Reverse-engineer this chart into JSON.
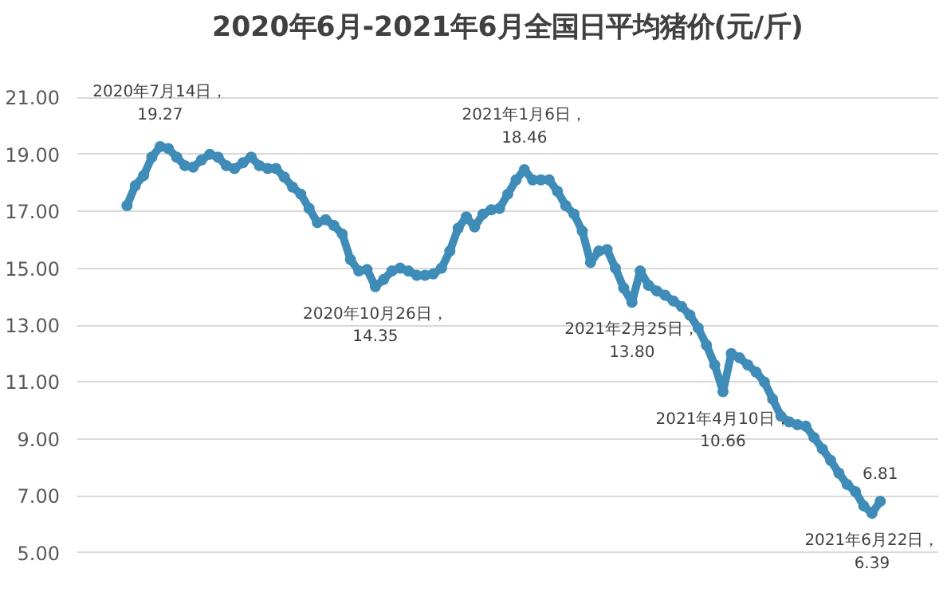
{
  "chart_data": {
    "type": "line",
    "title": "2020年6月-2021年6月全国日平均猪价(元/斤)",
    "categories": [
      null,
      null,
      null,
      null,
      null,
      null,
      null,
      null,
      null,
      null,
      null,
      null,
      null,
      null,
      null,
      null,
      null,
      null,
      null,
      null,
      null,
      null,
      null,
      null,
      null,
      null,
      null,
      null,
      null,
      null,
      null,
      null,
      null,
      null,
      null,
      null,
      null,
      null,
      null,
      null,
      null,
      null,
      null,
      null,
      null,
      null,
      null,
      null,
      null,
      null,
      null,
      null,
      null,
      null,
      null,
      null,
      null,
      null,
      null,
      null,
      null,
      null,
      null,
      null,
      null,
      null,
      null,
      null,
      null,
      null,
      null,
      null,
      null,
      null,
      null,
      null,
      null,
      null,
      null,
      null,
      null,
      null,
      null,
      null,
      null,
      null,
      null,
      null,
      null,
      null,
      null,
      null
    ],
    "series": [
      {
        "color": "#3f8cb8",
        "values": [
          17.2,
          17.9,
          18.25,
          18.9,
          19.27,
          19.2,
          18.9,
          18.6,
          18.55,
          18.8,
          19.0,
          18.9,
          18.6,
          18.5,
          18.7,
          18.9,
          18.6,
          18.5,
          18.5,
          18.2,
          17.85,
          17.6,
          17.1,
          16.6,
          16.7,
          16.5,
          16.2,
          15.3,
          14.9,
          14.95,
          14.35,
          14.6,
          14.9,
          15.0,
          14.9,
          14.75,
          14.75,
          14.8,
          15.0,
          15.6,
          16.4,
          16.8,
          16.45,
          16.9,
          17.05,
          17.1,
          17.6,
          18.1,
          18.46,
          18.1,
          18.1,
          18.1,
          17.7,
          17.2,
          16.9,
          16.3,
          15.2,
          15.6,
          15.65,
          15.0,
          14.3,
          13.8,
          14.9,
          14.4,
          14.2,
          14.05,
          13.85,
          13.65,
          13.35,
          12.9,
          12.3,
          11.6,
          10.66,
          12.0,
          11.85,
          11.6,
          11.35,
          11.0,
          10.4,
          9.8,
          9.6,
          9.5,
          9.45,
          9.05,
          8.65,
          8.25,
          7.8,
          7.4,
          7.15,
          6.65,
          6.39,
          6.81
        ]
      }
    ],
    "ylim": [
      5,
      21
    ],
    "yticks": [
      {
        "value": 5,
        "label": "5.00"
      },
      {
        "value": 7,
        "label": "7.00"
      },
      {
        "value": 9,
        "label": "9.00"
      },
      {
        "value": 11,
        "label": "11.00"
      },
      {
        "value": 13,
        "label": "13.00"
      },
      {
        "value": 15,
        "label": "15.00"
      },
      {
        "value": 17,
        "label": "17.00"
      },
      {
        "value": 19,
        "label": "19.00"
      },
      {
        "value": 21,
        "label": "21.00"
      }
    ],
    "grid": "y",
    "tick_labels": "y",
    "marker": "circle",
    "line_style": "solid",
    "annotations": [
      {
        "text": "2020年7月14日，\n19.27",
        "y": 19.27
      },
      {
        "text": "2020年10月26日，\n14.35",
        "y": 14.35
      },
      {
        "text": "2021年1月6日，\n18.46",
        "y": 18.46
      },
      {
        "text": "2021年2月25日，\n13.80",
        "y": 13.8
      },
      {
        "text": "2021年4月10日，\n10.66",
        "y": 10.66
      },
      {
        "text": "2021年6月22日，\n6.39",
        "y": 6.39
      },
      {
        "text": "6.81",
        "y": 6.81
      }
    ]
  }
}
